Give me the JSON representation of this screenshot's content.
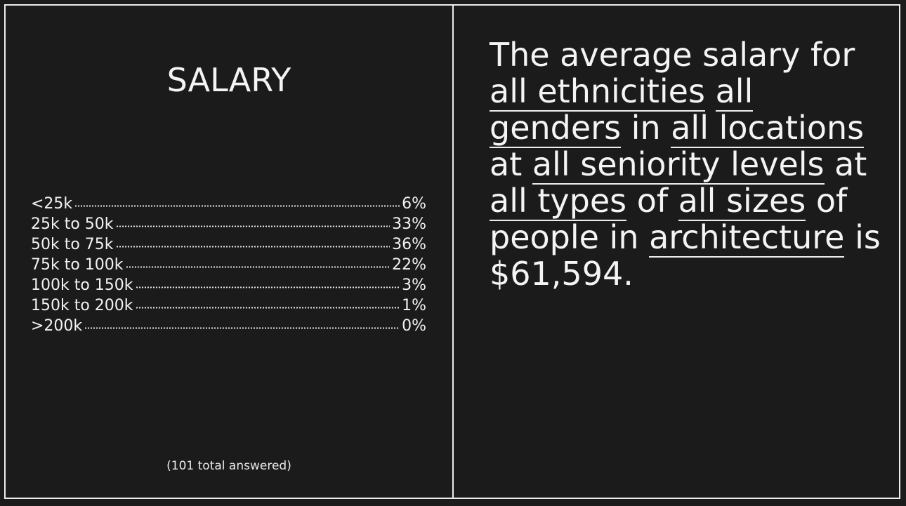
{
  "left_panel": {
    "title": "SALARY",
    "rows": [
      {
        "label": "<25k",
        "value": "6%"
      },
      {
        "label": "25k to 50k",
        "value": "33%"
      },
      {
        "label": "50k to 75k",
        "value": "36%"
      },
      {
        "label": "75k to 100k",
        "value": "22%"
      },
      {
        "label": "100k to 150k",
        "value": "3%"
      },
      {
        "label": "150k to 200k",
        "value": "1%"
      },
      {
        "label": ">200k",
        "value": "0%"
      }
    ],
    "total_answered": "(101 total answered)"
  },
  "right_panel": {
    "part1": "The average salary for ",
    "ethnicity": "all ethnicities",
    "part2": " ",
    "gender": "all genders",
    "part3": " in ",
    "location": "all locations",
    "part4": " at ",
    "seniority": "all seniority levels",
    "part5": " at ",
    "firm_type": "all types",
    "part6": " of ",
    "firm_size": "all sizes",
    "part7": " of people in ",
    "field": "architecture",
    "part8": " is $61,594."
  },
  "colors": {
    "background": "#1b1b1b",
    "foreground": "#f2f2f2",
    "rule": "#ededed"
  }
}
